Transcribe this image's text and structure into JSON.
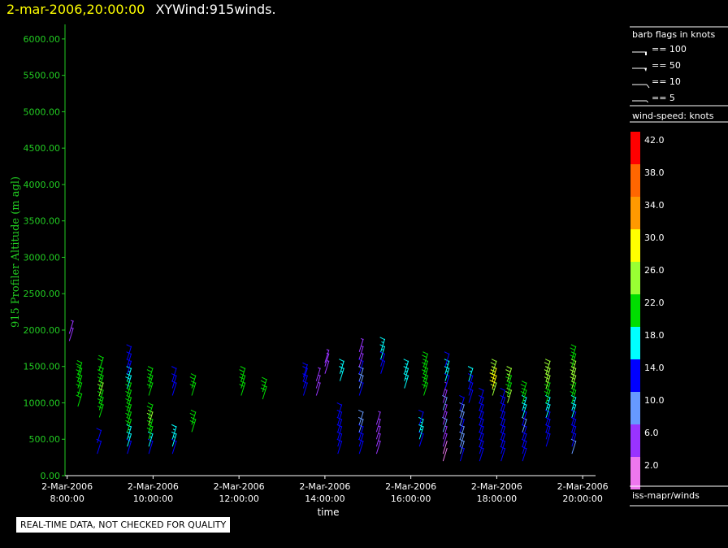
{
  "header": {
    "date_time": "2-mar-2006,20:00:00",
    "title": "XYWind:915winds."
  },
  "notice": "REAL-TIME DATA, NOT CHECKED FOR QUALITY",
  "colors": {
    "axis_x": "#ffffff",
    "axis_y": "#22cc22",
    "background": "#000000"
  },
  "legend": {
    "barb_title": "barb flags in knots",
    "barb_flags": [
      {
        "label": "== 100",
        "value": 100
      },
      {
        "label": "== 50",
        "value": 50
      },
      {
        "label": "== 10",
        "value": 10
      },
      {
        "label": "== 5",
        "value": 5
      }
    ],
    "speed_title": "wind-speed: knots",
    "speed_scale": [
      {
        "label": "42.0",
        "color": "#ff0000"
      },
      {
        "label": "38.0",
        "color": "#ff6600"
      },
      {
        "label": "34.0",
        "color": "#ff9900"
      },
      {
        "label": "30.0",
        "color": "#ffff00"
      },
      {
        "label": "26.0",
        "color": "#99ff33"
      },
      {
        "label": "22.0",
        "color": "#00dd00"
      },
      {
        "label": "18.0",
        "color": "#00ffff"
      },
      {
        "label": "14.0",
        "color": "#0000ff"
      },
      {
        "label": "10.0",
        "color": "#6699ff"
      },
      {
        "label": "6.0",
        "color": "#9933ff"
      },
      {
        "label": "2.0",
        "color": "#ee77ee"
      }
    ],
    "source": "iss-mapr/winds"
  },
  "chart_data": {
    "type": "scatter",
    "subtype": "wind-barbs",
    "xlabel": "time",
    "ylabel": "915 Profiler Altitude (m agl)",
    "x_range_hours": [
      7.95,
      20.3
    ],
    "ylim": [
      0,
      6200
    ],
    "yticks": [
      "0.00",
      "500.00",
      "1000.00",
      "1500.00",
      "2000.00",
      "2500.00",
      "3000.00",
      "3500.00",
      "4000.00",
      "4500.00",
      "5000.00",
      "5500.00",
      "6000.00"
    ],
    "ytick_values": [
      0,
      500,
      1000,
      1500,
      2000,
      2500,
      3000,
      3500,
      4000,
      4500,
      5000,
      5500,
      6000
    ],
    "xticks": [
      {
        "date": "2-Mar-2006",
        "time": "8:00:00",
        "hour": 8
      },
      {
        "date": "2-Mar-2006",
        "time": "10:00:00",
        "hour": 10
      },
      {
        "date": "2-Mar-2006",
        "time": "12:00:00",
        "hour": 12
      },
      {
        "date": "2-Mar-2006",
        "time": "14:00:00",
        "hour": 14
      },
      {
        "date": "2-Mar-2006",
        "time": "16:00:00",
        "hour": 16
      },
      {
        "date": "2-Mar-2006",
        "time": "18:00:00",
        "hour": 18
      },
      {
        "date": "2-Mar-2006",
        "time": "20:00:00",
        "hour": 20
      }
    ],
    "speed_units": "knots",
    "grid": false,
    "legend": "right",
    "profiles": [
      {
        "hour": 8.05,
        "alts": [
          1850,
          1950
        ],
        "speeds": [
          6,
          6
        ]
      },
      {
        "hour": 8.25,
        "alts": [
          950,
          1100,
          1200,
          1300,
          1380
        ],
        "speeds": [
          24,
          24,
          24,
          24,
          24
        ]
      },
      {
        "hour": 8.75,
        "alts": [
          800,
          900,
          1000,
          1100,
          1200,
          1300,
          1450
        ],
        "speeds": [
          24,
          24,
          24,
          26,
          24,
          24,
          24
        ]
      },
      {
        "hour": 8.7,
        "alts": [
          300,
          450
        ],
        "speeds": [
          14,
          14
        ]
      },
      {
        "hour": 9.4,
        "alts": [
          300,
          400,
          500,
          600,
          700,
          800,
          900,
          1000,
          1100,
          1200,
          1300,
          1400,
          1500,
          1600
        ],
        "speeds": [
          14,
          18,
          18,
          22,
          24,
          22,
          24,
          22,
          24,
          20,
          18,
          16,
          14,
          14
        ]
      },
      {
        "hour": 9.9,
        "alts": [
          300,
          400,
          500,
          600,
          700,
          800,
          1100,
          1200,
          1300
        ],
        "speeds": [
          14,
          18,
          24,
          24,
          26,
          24,
          22,
          24,
          24
        ]
      },
      {
        "hour": 10.45,
        "alts": [
          300,
          400,
          500,
          1100,
          1200,
          1300
        ],
        "speeds": [
          14,
          18,
          18,
          14,
          14,
          14
        ]
      },
      {
        "hour": 10.9,
        "alts": [
          600,
          700,
          1100,
          1200
        ],
        "speeds": [
          24,
          24,
          24,
          24
        ]
      },
      {
        "hour": 12.05,
        "alts": [
          1100,
          1200,
          1300
        ],
        "speeds": [
          24,
          22,
          24
        ]
      },
      {
        "hour": 12.55,
        "alts": [
          1050,
          1150
        ],
        "speeds": [
          24,
          22
        ]
      },
      {
        "hour": 13.5,
        "alts": [
          1100,
          1200,
          1300,
          1350
        ],
        "speeds": [
          14,
          14,
          14,
          14
        ]
      },
      {
        "hour": 13.8,
        "alts": [
          1100,
          1200,
          1300
        ],
        "speeds": [
          6,
          6,
          6
        ]
      },
      {
        "hour": 14.0,
        "alts": [
          1400,
          1500,
          1550
        ],
        "speeds": [
          6,
          6,
          6
        ]
      },
      {
        "hour": 14.3,
        "alts": [
          300,
          400,
          500,
          600,
          700,
          800
        ],
        "speeds": [
          14,
          14,
          14,
          14,
          14,
          14
        ]
      },
      {
        "hour": 14.35,
        "alts": [
          1300,
          1400
        ],
        "speeds": [
          18,
          18
        ]
      },
      {
        "hour": 14.8,
        "alts": [
          300,
          400,
          500,
          600,
          700
        ],
        "speeds": [
          14,
          14,
          14,
          10,
          10
        ]
      },
      {
        "hour": 14.8,
        "alts": [
          1100,
          1200,
          1300,
          1400,
          1500,
          1600,
          1700
        ],
        "speeds": [
          14,
          10,
          10,
          14,
          6,
          6,
          6
        ]
      },
      {
        "hour": 15.2,
        "alts": [
          300,
          400,
          500,
          600,
          700
        ],
        "speeds": [
          6,
          6,
          6,
          6,
          6
        ]
      },
      {
        "hour": 15.3,
        "alts": [
          1400,
          1500,
          1600,
          1700
        ],
        "speeds": [
          14,
          14,
          18,
          18
        ]
      },
      {
        "hour": 15.85,
        "alts": [
          1200,
          1300,
          1400
        ],
        "speeds": [
          18,
          18,
          18
        ]
      },
      {
        "hour": 16.2,
        "alts": [
          400,
          500,
          600,
          700
        ],
        "speeds": [
          14,
          18,
          18,
          14
        ]
      },
      {
        "hour": 16.3,
        "alts": [
          1100,
          1200,
          1300,
          1400,
          1500
        ],
        "speeds": [
          24,
          24,
          24,
          22,
          22
        ]
      },
      {
        "hour": 16.75,
        "alts": [
          200,
          300,
          400,
          500,
          600,
          700,
          800,
          900,
          1000,
          1100
        ],
        "speeds": [
          2,
          2,
          6,
          6,
          10,
          6,
          6,
          10,
          6,
          6
        ]
      },
      {
        "hour": 16.8,
        "alts": [
          1200,
          1300,
          1400,
          1500
        ],
        "speeds": [
          14,
          18,
          18,
          14
        ]
      },
      {
        "hour": 17.15,
        "alts": [
          200,
          300,
          400,
          500,
          600,
          700,
          800,
          900
        ],
        "speeds": [
          14,
          10,
          10,
          10,
          14,
          10,
          10,
          14
        ]
      },
      {
        "hour": 17.35,
        "alts": [
          1000,
          1100,
          1200,
          1300
        ],
        "speeds": [
          14,
          14,
          14,
          18
        ]
      },
      {
        "hour": 17.6,
        "alts": [
          200,
          300,
          400,
          500,
          600,
          700,
          800,
          900,
          1000
        ],
        "speeds": [
          14,
          14,
          14,
          14,
          14,
          14,
          14,
          14,
          14
        ]
      },
      {
        "hour": 17.9,
        "alts": [
          1100,
          1200,
          1300,
          1400
        ],
        "speeds": [
          26,
          30,
          30,
          26
        ]
      },
      {
        "hour": 18.1,
        "alts": [
          200,
          300,
          400,
          500,
          600,
          700,
          800,
          900,
          1000
        ],
        "speeds": [
          14,
          14,
          14,
          14,
          14,
          14,
          14,
          14,
          14
        ]
      },
      {
        "hour": 18.25,
        "alts": [
          1000,
          1100,
          1200,
          1300
        ],
        "speeds": [
          26,
          24,
          22,
          26
        ]
      },
      {
        "hour": 18.6,
        "alts": [
          200,
          300,
          400,
          500,
          600,
          700,
          800,
          900,
          1000,
          1100
        ],
        "speeds": [
          14,
          14,
          14,
          14,
          10,
          14,
          18,
          18,
          22,
          22
        ]
      },
      {
        "hour": 19.15,
        "alts": [
          400,
          500,
          600,
          700,
          800,
          900,
          1000,
          1100,
          1200,
          1300,
          1400
        ],
        "speeds": [
          14,
          14,
          14,
          14,
          18,
          18,
          22,
          24,
          26,
          28,
          26
        ]
      },
      {
        "hour": 19.75,
        "alts": [
          300,
          400,
          500,
          600,
          700,
          800,
          900,
          1000,
          1100,
          1200,
          1300,
          1400,
          1500,
          1600
        ],
        "speeds": [
          10,
          14,
          14,
          14,
          14,
          18,
          18,
          22,
          24,
          26,
          28,
          26,
          24,
          22
        ]
      }
    ]
  }
}
